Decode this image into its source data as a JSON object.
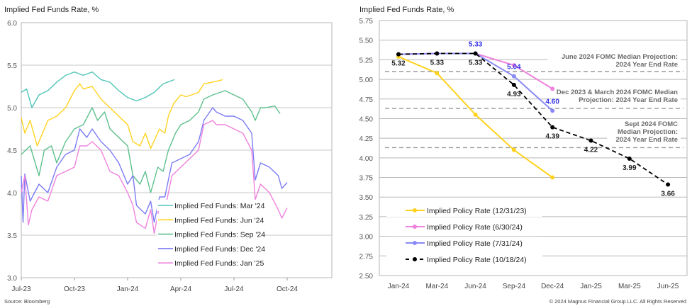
{
  "chart_data": [
    {
      "type": "line",
      "title": "Implied Fed Funds Rate, %",
      "xlabel": "",
      "ylabel": "",
      "ylim": [
        3.0,
        6.0
      ],
      "yticks": [
        "3.0",
        "3.5",
        "4.0",
        "4.5",
        "5.0",
        "5.5",
        "6.0"
      ],
      "xticks": [
        "Jul-23",
        "Oct-23",
        "Jan-24",
        "Apr-24",
        "Jul-24",
        "Oct-24"
      ],
      "x_unit": "months since Jul-23",
      "xlim": [
        0,
        17.5
      ],
      "grid": true,
      "legend_position": "bottom-right",
      "series": [
        {
          "name": "Implied Fed Funds: Mar '24",
          "color": "#4fc4b8",
          "points": [
            [
              0,
              5.18
            ],
            [
              0.3,
              5.22
            ],
            [
              0.6,
              5.0
            ],
            [
              1,
              5.15
            ],
            [
              1.5,
              5.2
            ],
            [
              2,
              5.3
            ],
            [
              2.5,
              5.38
            ],
            [
              3,
              5.42
            ],
            [
              3.5,
              5.38
            ],
            [
              4,
              5.42
            ],
            [
              4.5,
              5.33
            ],
            [
              5,
              5.3
            ],
            [
              5.5,
              5.2
            ],
            [
              6,
              5.12
            ],
            [
              6.5,
              5.08
            ],
            [
              7,
              5.12
            ],
            [
              7.5,
              5.18
            ],
            [
              8,
              5.28
            ],
            [
              8.64,
              5.33
            ]
          ]
        },
        {
          "name": "Implied Fed Funds: Jun '24",
          "color": "#ffd21f",
          "points": [
            [
              0,
              4.88
            ],
            [
              0.2,
              4.7
            ],
            [
              0.5,
              4.85
            ],
            [
              0.9,
              4.55
            ],
            [
              1.5,
              4.85
            ],
            [
              2,
              4.9
            ],
            [
              2.5,
              5.0
            ],
            [
              3,
              5.2
            ],
            [
              3.3,
              5.28
            ],
            [
              3.5,
              5.22
            ],
            [
              4,
              5.25
            ],
            [
              4.5,
              5.1
            ],
            [
              5,
              5.0
            ],
            [
              5.5,
              4.9
            ],
            [
              6,
              4.8
            ],
            [
              6.3,
              4.6
            ],
            [
              6.7,
              4.55
            ],
            [
              7,
              4.7
            ],
            [
              7.3,
              4.52
            ],
            [
              7.8,
              4.75
            ],
            [
              8.1,
              4.7
            ],
            [
              8.3,
              4.9
            ],
            [
              8.6,
              5.05
            ],
            [
              9,
              5.15
            ],
            [
              9.3,
              5.13
            ],
            [
              9.6,
              5.15
            ],
            [
              10,
              5.18
            ],
            [
              10.3,
              5.28
            ],
            [
              11,
              5.31
            ],
            [
              11.36,
              5.33
            ]
          ]
        },
        {
          "name": "Implied Fed Funds: Sep '24",
          "color": "#5cc08c",
          "points": [
            [
              0,
              4.45
            ],
            [
              0.5,
              4.55
            ],
            [
              1,
              4.2
            ],
            [
              1.3,
              4.5
            ],
            [
              1.7,
              4.55
            ],
            [
              2,
              4.35
            ],
            [
              2.5,
              4.6
            ],
            [
              3,
              4.75
            ],
            [
              3.5,
              4.8
            ],
            [
              4,
              5.0
            ],
            [
              4.3,
              4.85
            ],
            [
              4.7,
              4.95
            ],
            [
              5,
              4.75
            ],
            [
              5.5,
              4.65
            ],
            [
              6,
              4.55
            ],
            [
              6.3,
              4.2
            ],
            [
              6.7,
              4.1
            ],
            [
              7,
              4.25
            ],
            [
              7.3,
              4.0
            ],
            [
              7.7,
              4.3
            ],
            [
              8,
              4.25
            ],
            [
              8.3,
              4.5
            ],
            [
              8.7,
              4.7
            ],
            [
              9,
              4.8
            ],
            [
              9.5,
              4.85
            ],
            [
              10,
              4.95
            ],
            [
              10.3,
              5.1
            ],
            [
              10.8,
              5.15
            ],
            [
              11.5,
              5.2
            ],
            [
              12,
              5.15
            ],
            [
              12.5,
              5.1
            ],
            [
              13,
              4.95
            ],
            [
              13.2,
              4.85
            ],
            [
              13.5,
              5.0
            ],
            [
              13.8,
              5.0
            ],
            [
              14.3,
              5.02
            ],
            [
              14.6,
              4.93
            ]
          ]
        },
        {
          "name": "Implied Fed Funds: Dec '24",
          "color": "#7b7bf5",
          "points": [
            [
              0,
              4.2
            ],
            [
              0.1,
              3.65
            ],
            [
              0.2,
              4.22
            ],
            [
              0.5,
              3.9
            ],
            [
              1,
              4.1
            ],
            [
              1.5,
              4.0
            ],
            [
              2,
              4.3
            ],
            [
              2.5,
              4.45
            ],
            [
              3,
              4.5
            ],
            [
              3.3,
              4.75
            ],
            [
              3.7,
              4.65
            ],
            [
              4,
              4.75
            ],
            [
              4.5,
              4.6
            ],
            [
              5,
              4.5
            ],
            [
              5.5,
              4.35
            ],
            [
              6,
              4.1
            ],
            [
              6.3,
              4.2
            ],
            [
              6.5,
              3.85
            ],
            [
              7,
              3.75
            ],
            [
              7.3,
              3.9
            ],
            [
              7.5,
              3.65
            ],
            [
              7.8,
              3.95
            ],
            [
              8.1,
              3.95
            ],
            [
              8.5,
              4.35
            ],
            [
              9,
              4.4
            ],
            [
              9.5,
              4.45
            ],
            [
              10,
              4.6
            ],
            [
              10.3,
              4.85
            ],
            [
              10.8,
              5.0
            ],
            [
              11,
              4.95
            ],
            [
              11.5,
              4.9
            ],
            [
              12,
              4.9
            ],
            [
              12.5,
              4.85
            ],
            [
              13,
              4.7
            ],
            [
              13.2,
              4.15
            ],
            [
              13.5,
              4.35
            ],
            [
              14,
              4.3
            ],
            [
              14.5,
              4.2
            ],
            [
              14.7,
              4.05
            ],
            [
              15,
              4.12
            ]
          ]
        },
        {
          "name": "Implied Fed Funds: Jan '25",
          "color": "#ee82dc",
          "points": [
            [
              0,
              4.0
            ],
            [
              0.2,
              4.2
            ],
            [
              0.4,
              3.62
            ],
            [
              0.6,
              3.8
            ],
            [
              1,
              3.95
            ],
            [
              1.5,
              3.9
            ],
            [
              2,
              4.2
            ],
            [
              2.5,
              4.25
            ],
            [
              3,
              4.3
            ],
            [
              3.3,
              4.55
            ],
            [
              3.7,
              4.55
            ],
            [
              4,
              4.6
            ],
            [
              4.5,
              4.5
            ],
            [
              5,
              4.25
            ],
            [
              5.5,
              4.2
            ],
            [
              6,
              4.0
            ],
            [
              6.3,
              3.85
            ],
            [
              6.5,
              3.65
            ],
            [
              7,
              3.58
            ],
            [
              7.3,
              3.8
            ],
            [
              7.5,
              3.52
            ],
            [
              7.8,
              3.85
            ],
            [
              8.1,
              3.8
            ],
            [
              8.5,
              4.2
            ],
            [
              9,
              4.3
            ],
            [
              9.5,
              4.4
            ],
            [
              10,
              4.5
            ],
            [
              10.3,
              4.8
            ],
            [
              10.8,
              4.85
            ],
            [
              11,
              4.8
            ],
            [
              11.5,
              4.8
            ],
            [
              12,
              4.75
            ],
            [
              12.5,
              4.7
            ],
            [
              13,
              4.5
            ],
            [
              13.2,
              3.92
            ],
            [
              13.5,
              4.1
            ],
            [
              14,
              4.0
            ],
            [
              14.5,
              3.8
            ],
            [
              14.7,
              3.7
            ],
            [
              15,
              3.82
            ]
          ]
        }
      ],
      "source": "Source: Bloomberg"
    },
    {
      "type": "line",
      "title": "Implied Fed Funds Rate, %",
      "ylim": [
        2.5,
        5.75
      ],
      "yticks": [
        "2.50",
        "2.75",
        "3.00",
        "3.25",
        "3.50",
        "3.75",
        "4.00",
        "4.25",
        "4.50",
        "4.75",
        "5.00",
        "5.25",
        "5.50",
        "5.75"
      ],
      "categories": [
        "Jan-24",
        "Mar-24",
        "Jun-24",
        "Sep-24",
        "Dec-24",
        "Jan-25",
        "Mar-25",
        "Jun-25"
      ],
      "grid": true,
      "legend_position": "bottom-left",
      "series": [
        {
          "name": "Implied Policy Rate (12/31/23)",
          "color": "#ffd21f",
          "dashed": false,
          "values": [
            5.29,
            5.08,
            4.55,
            4.1,
            3.75,
            null,
            null,
            null
          ]
        },
        {
          "name": "Implied Policy Rate (6/30/24)",
          "color": "#ee82dc",
          "dashed": false,
          "values": [
            5.32,
            5.33,
            5.33,
            5.18,
            4.88,
            null,
            null,
            null
          ]
        },
        {
          "name": "Implied Policy Rate (7/31/24)",
          "color": "#8a8af5",
          "dashed": false,
          "values": [
            5.32,
            5.33,
            5.33,
            5.04,
            4.6,
            null,
            null,
            null
          ]
        },
        {
          "name": "Implied Policy Rate (10/18/24)",
          "color": "#000000",
          "dashed": true,
          "values": [
            5.32,
            5.33,
            5.33,
            4.93,
            4.39,
            4.22,
            3.99,
            3.66
          ]
        }
      ],
      "data_labels": [
        {
          "text": "5.32",
          "cat": 0,
          "value": 5.32,
          "pos": "below",
          "color": "#222222"
        },
        {
          "text": "5.33",
          "cat": 1,
          "value": 5.33,
          "pos": "below",
          "color": "#222222"
        },
        {
          "text": "5.33",
          "cat": 2,
          "value": 5.33,
          "pos": "below",
          "color": "#222222"
        },
        {
          "text": "5.33",
          "cat": 2,
          "value": 5.33,
          "pos": "above",
          "color": "#3535e8"
        },
        {
          "text": "5.04",
          "cat": 3,
          "value": 5.04,
          "pos": "above",
          "color": "#3535e8"
        },
        {
          "text": "4.93",
          "cat": 3,
          "value": 4.93,
          "pos": "below",
          "color": "#222222"
        },
        {
          "text": "4.60",
          "cat": 4,
          "value": 4.6,
          "pos": "above",
          "color": "#3535e8"
        },
        {
          "text": "4.39",
          "cat": 4,
          "value": 4.39,
          "pos": "below",
          "color": "#222222"
        },
        {
          "text": "4.22",
          "cat": 5,
          "value": 4.22,
          "pos": "below",
          "color": "#222222"
        },
        {
          "text": "3.99",
          "cat": 6,
          "value": 3.99,
          "pos": "below",
          "color": "#222222"
        },
        {
          "text": "3.66",
          "cat": 7,
          "value": 3.66,
          "pos": "below",
          "color": "#222222"
        }
      ],
      "reference_lines": [
        {
          "value": 5.1,
          "label": [
            "June 2024 FOMC Median Projection:",
            "2024 Year End Rate"
          ]
        },
        {
          "value": 4.63,
          "label": [
            "Dec 2023 & March 2024 FOMC Median",
            "Projection: 2024 Year End Rate"
          ]
        },
        {
          "value": 4.13,
          "label": [
            "Sept 2024 FOMC",
            "Median Projection:",
            "2024 Year End Rate"
          ]
        }
      ],
      "copyright": "© 2024 Magnus Financial Group LLC. All Rights Reserved"
    }
  ]
}
